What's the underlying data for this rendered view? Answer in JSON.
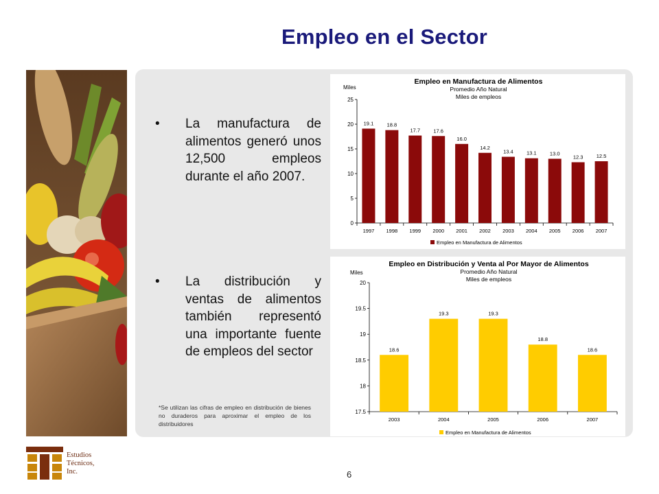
{
  "page": {
    "title": "Empleo en el Sector",
    "bullets": [
      "La manufactura de alimentos generó unos 12,500 empleos durante el año 2007.",
      "La distribución y ventas de alimentos también representó una importante fuente de empleos del sector"
    ],
    "bullet_marker": "•",
    "footnote": "*Se utilizan las cifras de empleo en distribución de bienes no duraderos para aproximar el empleo de los distribuidores",
    "page_number": "6",
    "logo": {
      "lines": [
        "Estudios",
        "Técnicos,",
        "Inc."
      ],
      "colors": [
        "#7a2e0e",
        "#c8860a"
      ]
    }
  },
  "chart_data": [
    {
      "type": "bar",
      "title": "Empleo en Manufactura de Alimentos",
      "subtitle": [
        "Promedio Año Natural",
        "Miles de empleos"
      ],
      "ylabel": "Miles",
      "xlabel": "",
      "categories": [
        "1997",
        "1998",
        "1999",
        "2000",
        "2001",
        "2002",
        "2003",
        "2004",
        "2005",
        "2006",
        "2007"
      ],
      "series": [
        {
          "name": "Empleo en Manufactura de Alimentos",
          "values": [
            19.1,
            18.8,
            17.7,
            17.6,
            16.0,
            14.2,
            13.4,
            13.1,
            13.0,
            12.3,
            12.5
          ],
          "labels": [
            "19.1",
            "18.8",
            "17.7",
            "17.6",
            "16.0",
            "14.2",
            "13.4",
            "13.1",
            "13.0",
            "12.3",
            "12.5"
          ],
          "color": "#8b0a0a"
        }
      ],
      "ylim": [
        0,
        25
      ],
      "yticks": [
        0,
        5,
        10,
        15,
        20,
        25
      ],
      "ytick_labels": [
        "0",
        "5",
        "10",
        "15",
        "20",
        "25"
      ],
      "grid": false,
      "legend": "bottom"
    },
    {
      "type": "bar",
      "title": "Empleo en Distribución y Venta al Por Mayor de Alimentos",
      "subtitle": [
        "Promedio Año Natural",
        "Miles de empleos"
      ],
      "ylabel": "Miles",
      "xlabel": "",
      "categories": [
        "2003",
        "2004",
        "2005",
        "2006",
        "2007"
      ],
      "series": [
        {
          "name": "Empleo en Manufactura de Alimentos",
          "values": [
            18.6,
            19.3,
            19.3,
            18.8,
            18.6
          ],
          "labels": [
            "18.6",
            "19.3",
            "19.3",
            "18.8",
            "18.6"
          ],
          "color": "#ffcc00"
        }
      ],
      "ylim": [
        17.5,
        20
      ],
      "yticks": [
        17.5,
        18,
        18.5,
        19,
        19.5,
        20
      ],
      "ytick_labels": [
        "17.5",
        "18",
        "18.5",
        "19",
        "19.5",
        "20"
      ],
      "grid": false,
      "legend": "bottom"
    }
  ]
}
